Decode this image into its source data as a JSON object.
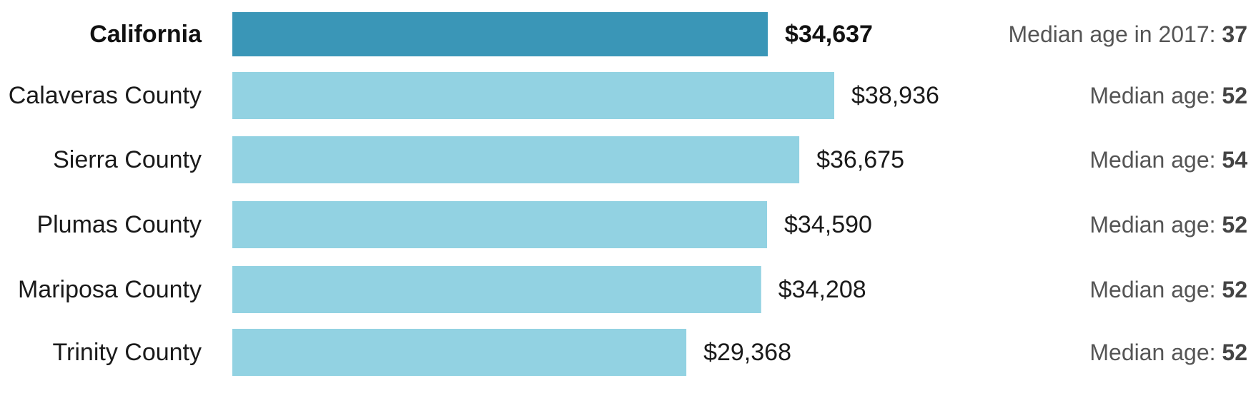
{
  "colors": {
    "highlight_bar": "#3a96b7",
    "bar": "#92d2e2",
    "text": "#1a1a1a",
    "age_text": "#555555"
  },
  "chart_data": {
    "type": "bar",
    "orientation": "horizontal",
    "categories": [
      "California",
      "Calaveras County",
      "Sierra County",
      "Plumas County",
      "Mariposa County",
      "Trinity County"
    ],
    "values": [
      34637,
      38936,
      36675,
      34590,
      34208,
      29368
    ],
    "value_labels": [
      "$34,637",
      "$38,936",
      "$36,675",
      "$34,590",
      "$34,208",
      "$29,368"
    ],
    "highlight_index": 0,
    "age_prefixes": [
      "Median age in 2017: ",
      "Median age: ",
      "Median age: ",
      "Median age: ",
      "Median age: ",
      "Median age: "
    ],
    "median_ages": [
      37,
      52,
      54,
      52,
      52,
      52
    ],
    "title": "",
    "xlabel": "",
    "ylabel": "",
    "xlim": [
      0,
      38936
    ],
    "grid": false,
    "legend": "none"
  }
}
